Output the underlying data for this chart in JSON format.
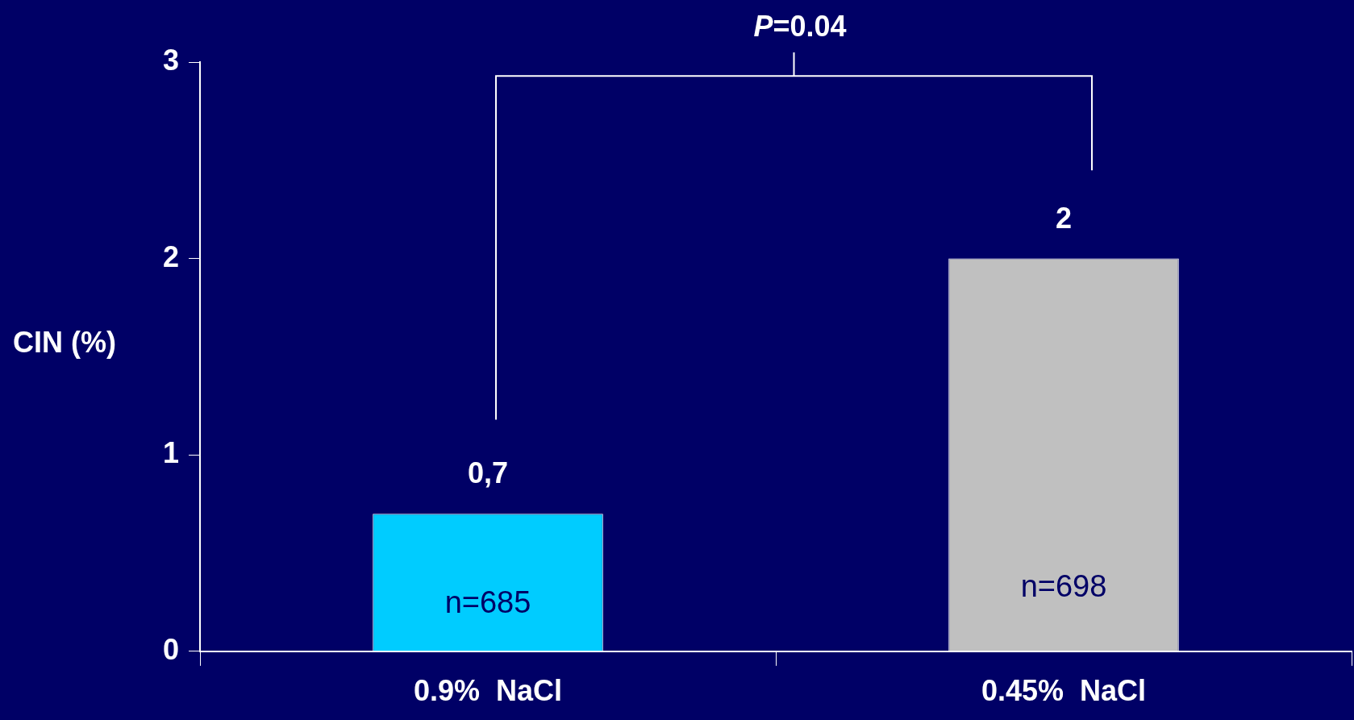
{
  "chart_data": {
    "type": "bar",
    "categories": [
      "0.9%  NaCl",
      "0.45%  NaCl"
    ],
    "values": [
      0.7,
      2
    ],
    "colors": [
      "#00ccff",
      "#c0c0c0"
    ],
    "value_labels": [
      "0,7",
      "2"
    ],
    "ylabel": "CIN (%)",
    "ylim": [
      0,
      3
    ],
    "yticks": [
      0,
      1,
      2,
      3
    ],
    "grid": false,
    "legend": false,
    "annotations": [
      "P=0.04",
      "n=685",
      "n=698"
    ]
  }
}
